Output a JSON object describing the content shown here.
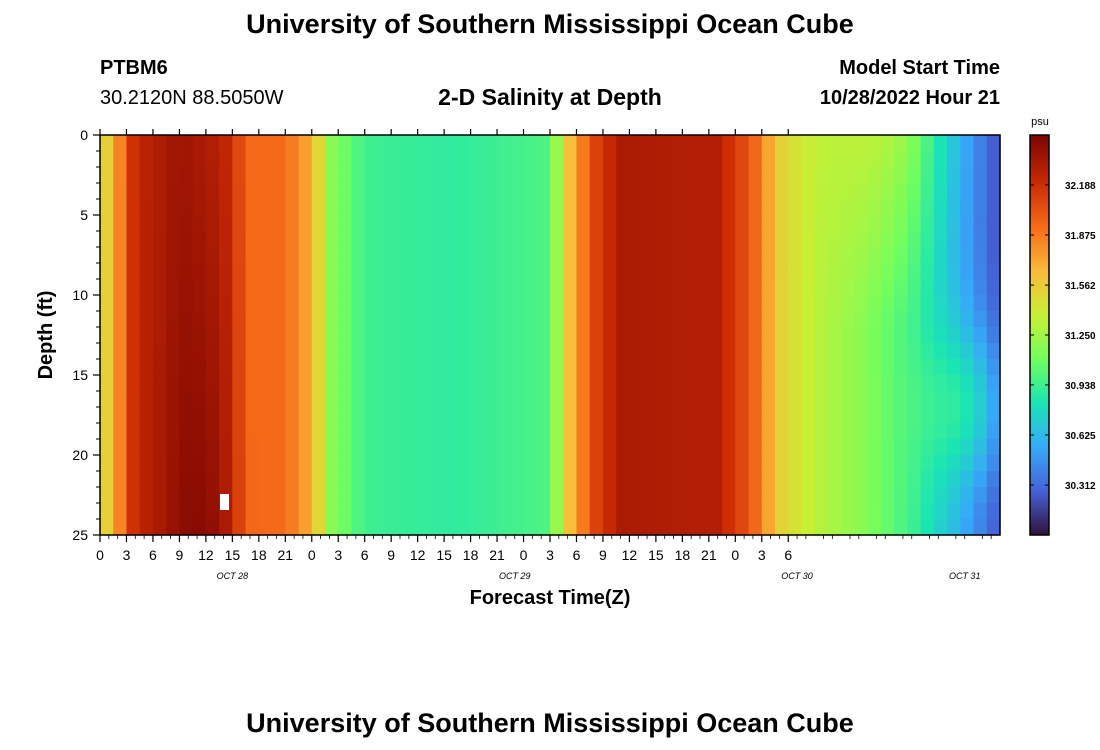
{
  "header": {
    "title": "University of Southern Mississippi Ocean Cube",
    "station_id": "PTBM6",
    "coordinates": "30.2120N  88.5050W",
    "subtitle": "2-D Salinity at Depth",
    "start_time_label": "Model Start Time",
    "start_time_value": "10/28/2022 Hour 21"
  },
  "footer": {
    "title": "University of Southern Mississippi Ocean Cube"
  },
  "colors": {
    "scale": [
      "#30123b",
      "#4662d7",
      "#36aaf9",
      "#1ae4b6",
      "#72fe5e",
      "#c8ef34",
      "#faba39",
      "#f66b19",
      "#ca2a04",
      "#7a0403"
    ]
  },
  "chart_data": {
    "type": "heatmap",
    "xlabel": "Forecast Time(Z)",
    "ylabel": "Depth (ft)",
    "colorbar_unit": "psu",
    "x_range_hours": [
      0,
      102
    ],
    "y_range": [
      0,
      25
    ],
    "y_ticks": [
      "0",
      "5",
      "10",
      "15",
      "20",
      "25"
    ],
    "x_tick_labels": [
      "0",
      "3",
      "6",
      "9",
      "12",
      "15",
      "18",
      "21",
      "0",
      "3",
      "6",
      "9",
      "12",
      "15",
      "18",
      "21",
      "0",
      "3",
      "6",
      "9",
      "12",
      "15",
      "18",
      "21",
      "0",
      "3",
      "6"
    ],
    "date_labels": [
      {
        "text": "OCT 28",
        "hour": 15
      },
      {
        "text": "OCT 29",
        "hour": 47
      },
      {
        "text": "OCT 30",
        "hour": 79
      },
      {
        "text": "OCT 31",
        "hour": 98
      }
    ],
    "colorbar_ticks": [
      "32.188",
      "31.875",
      "31.562",
      "31.250",
      "30.938",
      "30.625",
      "30.312"
    ],
    "colorbar_range": [
      30.0,
      32.5
    ],
    "units": "psu",
    "surface_salinity_psu": [
      {
        "hour": 0,
        "value": 31.4
      },
      {
        "hour": 2,
        "value": 31.8
      },
      {
        "hour": 4,
        "value": 32.25
      },
      {
        "hour": 9,
        "value": 32.38
      },
      {
        "hour": 14,
        "value": 32.28
      },
      {
        "hour": 17,
        "value": 31.95
      },
      {
        "hour": 21,
        "value": 31.95
      },
      {
        "hour": 24,
        "value": 31.7
      },
      {
        "hour": 26,
        "value": 31.2
      },
      {
        "hour": 30,
        "value": 30.95
      },
      {
        "hour": 40,
        "value": 30.9
      },
      {
        "hour": 51,
        "value": 31.0
      },
      {
        "hour": 53,
        "value": 31.6
      },
      {
        "hour": 56,
        "value": 32.1
      },
      {
        "hour": 59,
        "value": 32.33
      },
      {
        "hour": 70,
        "value": 32.3
      },
      {
        "hour": 74,
        "value": 32.0
      },
      {
        "hour": 77,
        "value": 31.55
      },
      {
        "hour": 81,
        "value": 31.35
      },
      {
        "hour": 86,
        "value": 31.2
      },
      {
        "hour": 92,
        "value": 30.95
      },
      {
        "hour": 97,
        "value": 30.6
      },
      {
        "hour": 102,
        "value": 30.2
      }
    ]
  }
}
